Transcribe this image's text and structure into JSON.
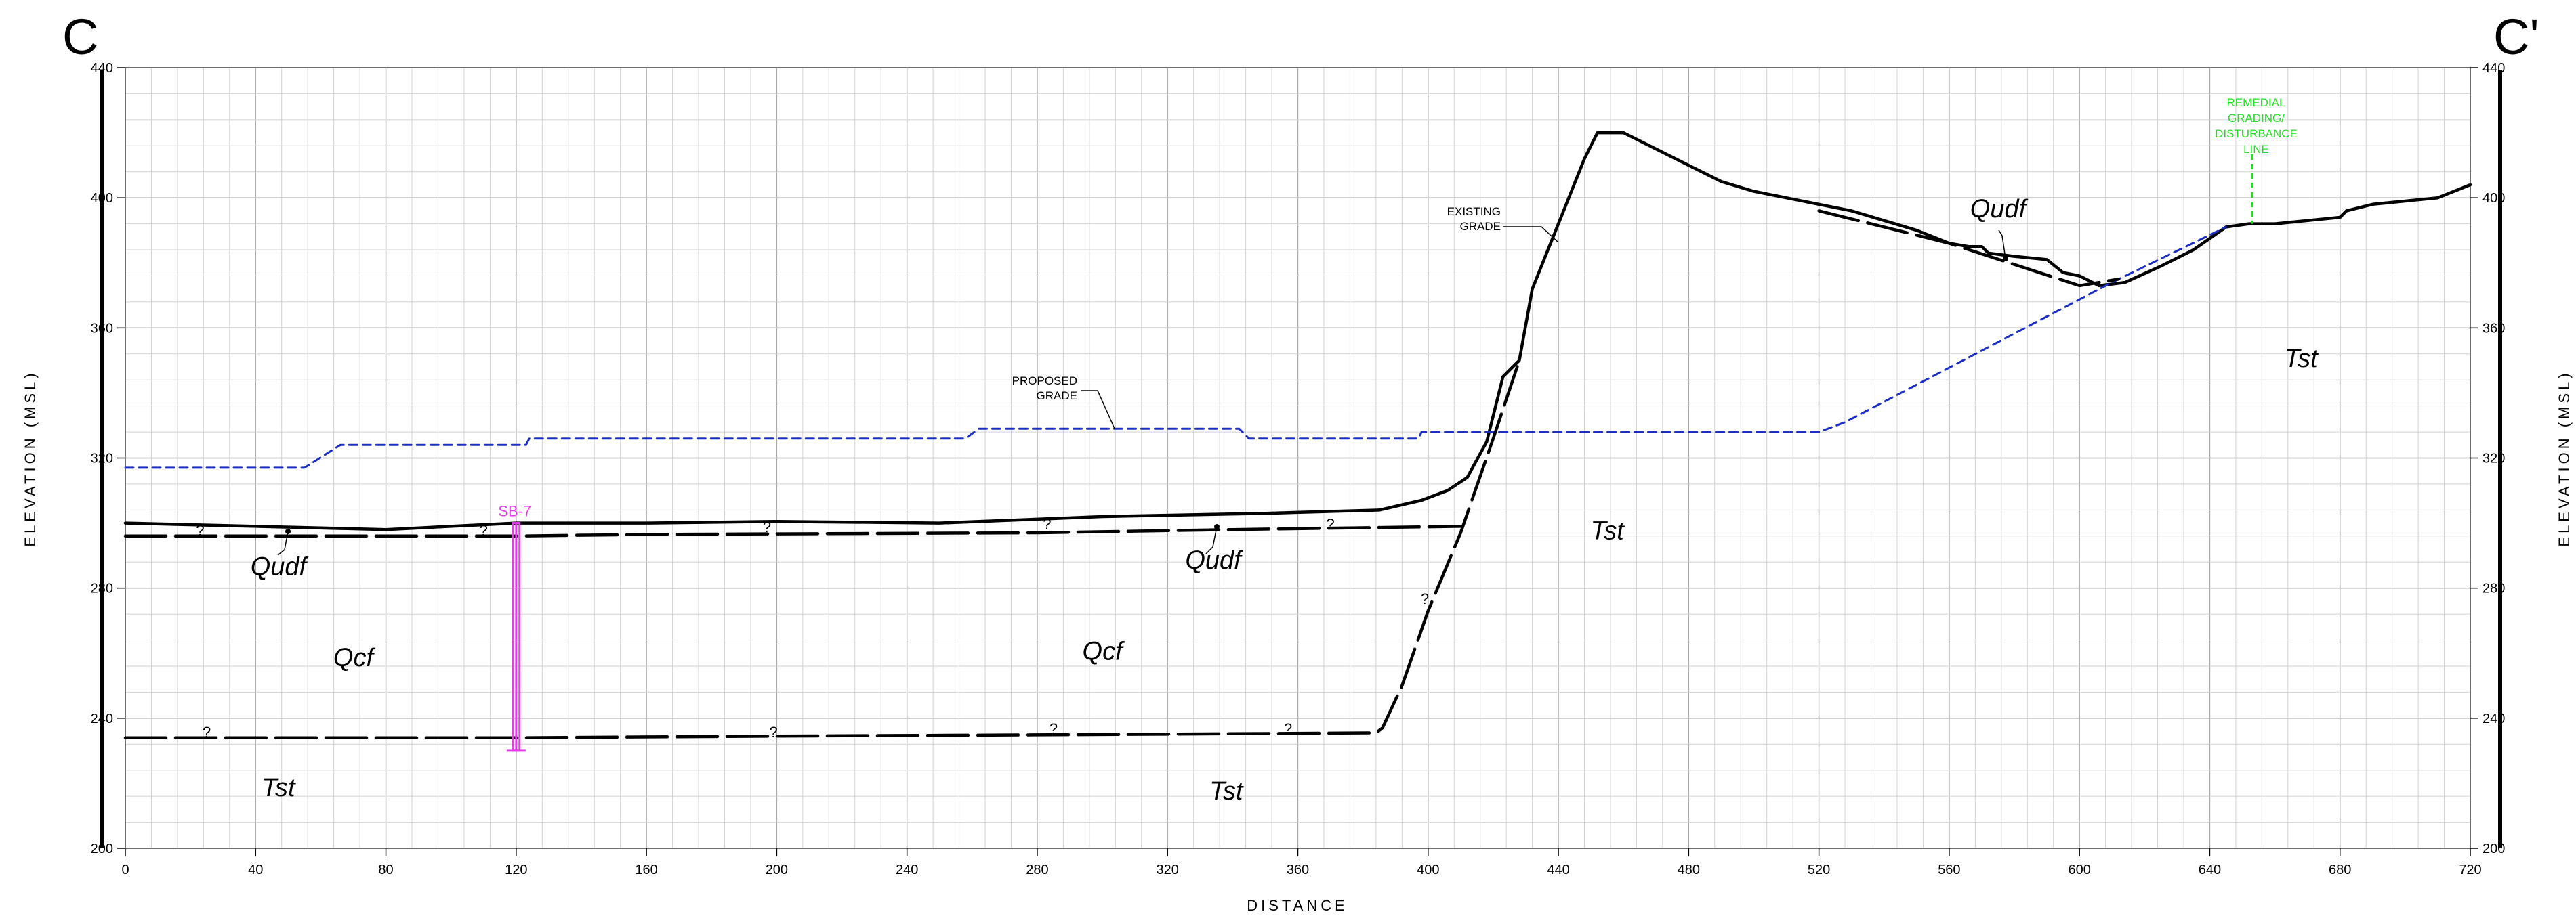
{
  "section": {
    "left_letter": "C",
    "right_letter": "C'"
  },
  "axes": {
    "x_title": "DISTANCE",
    "y_title": "ELEVATION (MSL)",
    "x_range": [
      0,
      720
    ],
    "y_range": [
      200,
      440
    ],
    "x_major_step": 40,
    "y_major_step": 40,
    "x_minor_step": 8,
    "y_minor_step": 8,
    "x_ticks": [
      "0",
      "40",
      "80",
      "120",
      "160",
      "200",
      "240",
      "280",
      "320",
      "360",
      "400",
      "440",
      "480",
      "520",
      "560",
      "600",
      "640",
      "680",
      "720"
    ],
    "y_ticks": [
      "440",
      "400",
      "360",
      "320",
      "280",
      "240",
      "200"
    ]
  },
  "chart_data": {
    "type": "line",
    "x_range": [
      0,
      720
    ],
    "y_range": [
      200,
      440
    ],
    "grid": true,
    "series": [
      {
        "name": "EXISTING GRADE",
        "color": "#000000",
        "style": "solid",
        "points": [
          [
            0,
            300
          ],
          [
            40,
            299
          ],
          [
            80,
            298
          ],
          [
            120,
            300
          ],
          [
            160,
            300
          ],
          [
            200,
            300.5
          ],
          [
            250,
            300
          ],
          [
            300,
            302
          ],
          [
            350,
            303
          ],
          [
            385,
            304
          ],
          [
            398,
            307
          ],
          [
            406,
            310
          ],
          [
            412,
            314
          ],
          [
            418,
            325
          ],
          [
            423,
            345
          ],
          [
            428,
            350
          ],
          [
            432,
            372
          ],
          [
            436,
            382
          ],
          [
            440,
            392
          ],
          [
            444,
            402
          ],
          [
            448,
            412
          ],
          [
            452,
            420
          ],
          [
            460,
            420
          ],
          [
            470,
            415
          ],
          [
            480,
            410
          ],
          [
            490,
            405
          ],
          [
            500,
            402
          ],
          [
            520,
            398
          ],
          [
            530,
            396
          ],
          [
            540,
            393
          ],
          [
            550,
            390
          ],
          [
            560,
            386
          ],
          [
            566,
            385
          ],
          [
            570,
            385
          ],
          [
            572,
            383
          ],
          [
            580,
            382
          ],
          [
            590,
            381
          ],
          [
            595,
            377
          ],
          [
            600,
            376
          ],
          [
            606,
            373
          ],
          [
            614,
            374
          ],
          [
            625,
            379
          ],
          [
            635,
            384
          ],
          [
            645,
            391
          ],
          [
            652,
            392
          ],
          [
            660,
            392
          ],
          [
            680,
            394
          ],
          [
            682,
            396
          ],
          [
            690,
            398
          ],
          [
            700,
            399
          ],
          [
            710,
            400
          ],
          [
            720,
            404
          ]
        ]
      },
      {
        "name": "PROPOSED GRADE",
        "color": "#1c2fc4",
        "style": "dashed",
        "points": [
          [
            0,
            317
          ],
          [
            55,
            317
          ],
          [
            66,
            324
          ],
          [
            123,
            324
          ],
          [
            124,
            326
          ],
          [
            258,
            326
          ],
          [
            262,
            329
          ],
          [
            342,
            329
          ],
          [
            345,
            326
          ],
          [
            397,
            326
          ],
          [
            398,
            328
          ],
          [
            520,
            328
          ],
          [
            528,
            331
          ],
          [
            610,
            374
          ],
          [
            645,
            391
          ]
        ]
      },
      {
        "name": "Qudf/Qcf contact",
        "color": "#000000",
        "style": "long-dash",
        "points": [
          [
            0,
            296
          ],
          [
            120,
            296
          ],
          [
            160,
            296.5
          ],
          [
            280,
            297
          ],
          [
            340,
            298
          ],
          [
            410,
            299
          ]
        ]
      },
      {
        "name": "Qcf/Tst contact",
        "color": "#000000",
        "style": "long-dash",
        "points": [
          [
            0,
            234
          ],
          [
            120,
            234
          ],
          [
            200,
            234.5
          ],
          [
            300,
            235
          ],
          [
            384,
            235.5
          ],
          [
            386,
            237
          ],
          [
            392,
            250
          ],
          [
            400,
            273
          ],
          [
            405,
            285
          ],
          [
            410,
            297
          ],
          [
            420,
            326
          ],
          [
            428,
            350
          ]
        ]
      },
      {
        "name": "Qudf/Tst contact (upper)",
        "color": "#000000",
        "style": "long-dash",
        "points": [
          [
            520,
            396
          ],
          [
            560,
            386
          ],
          [
            600,
            373
          ],
          [
            612,
            375
          ]
        ]
      }
    ],
    "boring": {
      "name": "SB-7",
      "color": "#e23ee8",
      "x": 120,
      "y_top": 300,
      "y_bottom": 230
    },
    "remedial_line": {
      "color": "#1fe01f",
      "x": 653,
      "y_top": 400,
      "y_bottom": 392
    },
    "annotations": {
      "existing_grade": [
        "EXISTING",
        "GRADE"
      ],
      "proposed_grade": [
        "PROPOSED",
        "GRADE"
      ],
      "remedial": [
        "REMEDIAL",
        "GRADING/",
        "DISTURBANCE",
        "LINE"
      ],
      "boring_label": "SB-7",
      "question_mark": "?"
    },
    "units": [
      {
        "label": "Qudf",
        "x": 47,
        "y": 284
      },
      {
        "label": "Qudf",
        "x": 334,
        "y": 286
      },
      {
        "label": "Qudf",
        "x": 575,
        "y": 394
      },
      {
        "label": "Qcf",
        "x": 70,
        "y": 256
      },
      {
        "label": "Qcf",
        "x": 300,
        "y": 258
      },
      {
        "label": "Tst",
        "x": 47,
        "y": 216
      },
      {
        "label": "Tst",
        "x": 338,
        "y": 215
      },
      {
        "label": "Tst",
        "x": 455,
        "y": 295
      },
      {
        "label": "Tst",
        "x": 668,
        "y": 348
      }
    ],
    "question_marks": [
      [
        23,
        297
      ],
      [
        110,
        297
      ],
      [
        197,
        298
      ],
      [
        283,
        299
      ],
      [
        370,
        299
      ],
      [
        25,
        235
      ],
      [
        199,
        235
      ],
      [
        285,
        236
      ],
      [
        357,
        236
      ],
      [
        399,
        276
      ]
    ]
  }
}
